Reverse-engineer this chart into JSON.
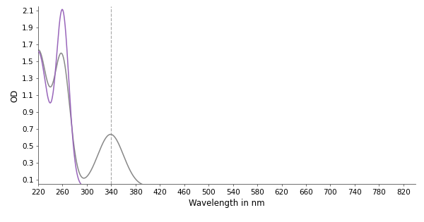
{
  "xlabel": "Wavelength in nm",
  "ylabel": "OD",
  "xlim": [
    220,
    840
  ],
  "ylim": [
    0.05,
    2.15
  ],
  "yticks": [
    0.1,
    0.3,
    0.5,
    0.7,
    0.9,
    1.1,
    1.3,
    1.5,
    1.7,
    1.9,
    2.1
  ],
  "xticks": [
    220,
    260,
    300,
    340,
    380,
    420,
    460,
    500,
    540,
    580,
    620,
    660,
    700,
    740,
    780,
    820
  ],
  "dashed_line_x": 340,
  "nad_plus_color": "#9966bb",
  "nadh_color": "#888888",
  "background_color": "#ffffff",
  "linewidth": 1.1,
  "figsize": [
    6.0,
    3.15
  ],
  "dpi": 100
}
